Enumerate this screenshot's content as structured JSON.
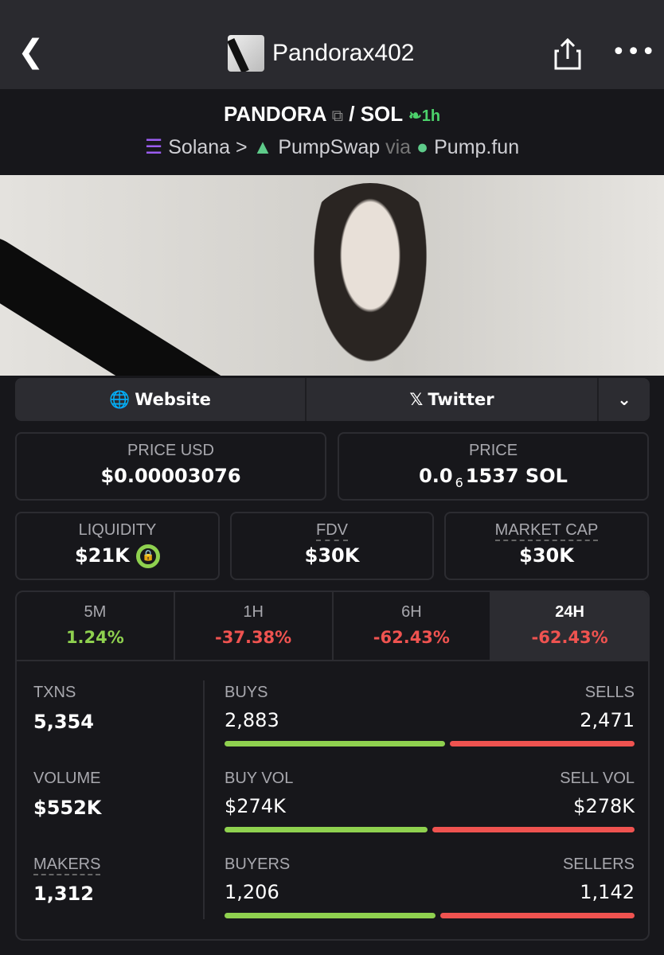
{
  "header": {
    "title": "Pandorax402",
    "back_icon": "chevron-left-icon",
    "share_icon": "share-icon",
    "more_icon": "more-icon"
  },
  "pair": {
    "base": "PANDORA",
    "copy_icon": "copy-icon",
    "quote": "/ SOL",
    "age": "1h",
    "age_icon": "seedling-icon"
  },
  "chain": {
    "network": "Solana",
    "sep": ">",
    "dex": "PumpSwap",
    "via": "via",
    "launchpad": "Pump.fun"
  },
  "links": {
    "website": "Website",
    "twitter": "Twitter"
  },
  "price": {
    "usd_label": "PRICE USD",
    "usd": "$0.00003076",
    "sol_label": "PRICE",
    "sol_prefix": "0.0",
    "sol_zeros": "6",
    "sol_rest": "1537 SOL"
  },
  "metrics": {
    "liquidity_label": "LIQUIDITY",
    "liquidity": "$21K",
    "fdv_label": "FDV",
    "fdv": "$30K",
    "mcap_label": "MARKET CAP",
    "mcap": "$30K"
  },
  "tabs": [
    {
      "label": "5M",
      "change": "1.24%",
      "color": "#8fd14f"
    },
    {
      "label": "1H",
      "change": "-37.38%",
      "color": "#ef5350"
    },
    {
      "label": "6H",
      "change": "-62.43%",
      "color": "#ef5350"
    },
    {
      "label": "24H",
      "change": "-62.43%",
      "color": "#ef5350",
      "active": true
    }
  ],
  "stats": {
    "txns_label": "TXNS",
    "txns": "5,354",
    "volume_label": "VOLUME",
    "volume": "$552K",
    "makers_label": "MAKERS",
    "makers": "1,312",
    "rows": [
      {
        "left_label": "BUYS",
        "left": "2,883",
        "right_label": "SELLS",
        "right": "2,471",
        "buy_fraction": 0.538
      },
      {
        "left_label": "BUY VOL",
        "left": "$274K",
        "right_label": "SELL VOL",
        "right": "$278K",
        "buy_fraction": 0.496
      },
      {
        "left_label": "BUYERS",
        "left": "1,206",
        "right_label": "SELLERS",
        "right": "1,142",
        "buy_fraction": 0.514
      }
    ]
  },
  "colors": {
    "green": "#8fd14f",
    "red": "#ef5350",
    "age": "#4cd26b"
  }
}
